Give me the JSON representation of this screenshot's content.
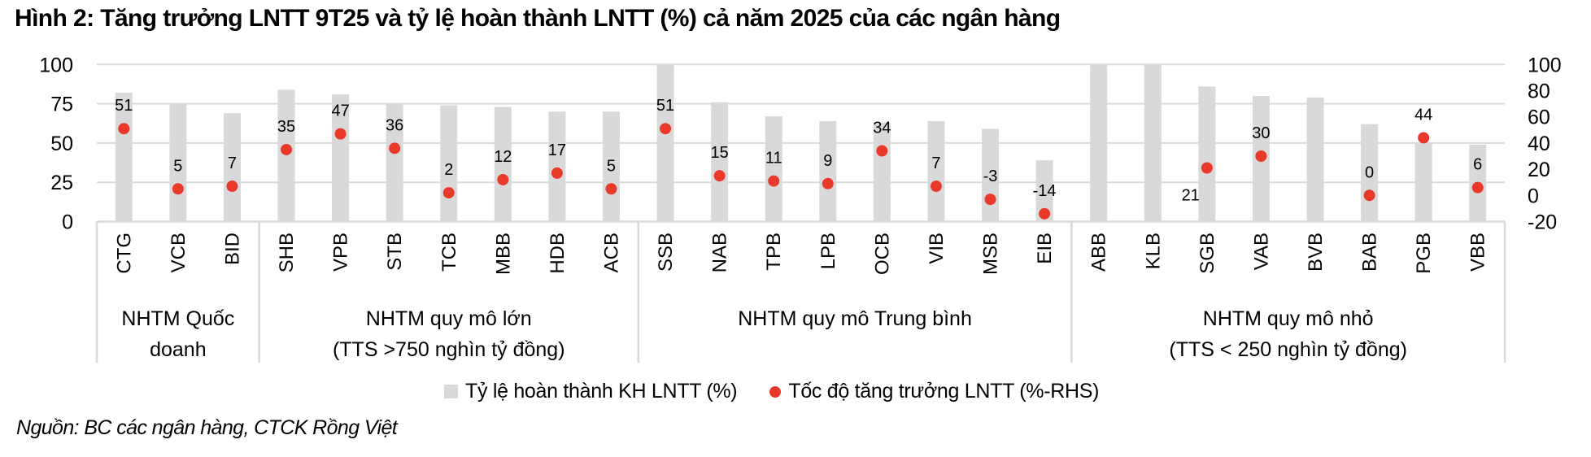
{
  "title": "Hình 2: Tăng trưởng LNTT 9T25 và tỷ lệ hoàn thành LNTT (%) cả năm 2025 của các ngân hàng",
  "legend": {
    "bar_label": "Tỷ lệ hoàn thành KH LNTT (%)",
    "dot_label": "Tốc độ tăng trưởng LNTT (%-RHS)"
  },
  "source": "Nguồn: BC các ngân hàng, CTCK Rồng Việt",
  "colors": {
    "bar": "#d9d9d9",
    "dot": "#e8392b",
    "grid": "#d9d9d9",
    "text": "#000000"
  },
  "chart_data": {
    "type": "bar",
    "title": "Hình 2: Tăng trưởng LNTT 9T25 và tỷ lệ hoàn thành LNTT (%) cả năm 2025 của các ngân hàng",
    "xlabel": "",
    "ylabel": "",
    "categories": [
      "CTG",
      "VCB",
      "BID",
      "SHB",
      "VPB",
      "STB",
      "TCB",
      "MBB",
      "HDB",
      "ACB",
      "SSB",
      "NAB",
      "TPB",
      "LPB",
      "OCB",
      "VIB",
      "MSB",
      "EIB",
      "ABB",
      "KLB",
      "SGB",
      "VAB",
      "BVB",
      "BAB",
      "PGB",
      "VBB"
    ],
    "groups": [
      {
        "label_lines": [
          "NHTM Quốc",
          "doanh"
        ],
        "start": 0,
        "end": 3
      },
      {
        "label_lines": [
          "NHTM quy mô lớn",
          "(TTS >750 nghìn tỷ đồng)"
        ],
        "start": 3,
        "end": 10
      },
      {
        "label_lines": [
          "NHTM quy mô Trung bình"
        ],
        "start": 10,
        "end": 18
      },
      {
        "label_lines": [
          "NHTM quy mô nhỏ",
          "(TTS < 250 nghìn tỷ đồng)"
        ],
        "start": 18,
        "end": 26
      }
    ],
    "series": [
      {
        "name": "Tỷ lệ hoàn thành KH LNTT (%)",
        "type": "bar",
        "axis": "left",
        "values": [
          82,
          75,
          69,
          84,
          81,
          75,
          74,
          73,
          70,
          70,
          100,
          76,
          67,
          64,
          63,
          64,
          59,
          39,
          100,
          100,
          86,
          80,
          79,
          62,
          50,
          49
        ]
      },
      {
        "name": "Tốc độ tăng trưởng LNTT (%-RHS)",
        "type": "scatter",
        "axis": "right",
        "values": [
          51,
          5,
          7,
          35,
          47,
          36,
          2,
          12,
          17,
          5,
          51,
          15,
          11,
          9,
          34,
          7,
          -3,
          -14,
          null,
          null,
          21,
          30,
          null,
          0,
          44,
          6
        ],
        "data_labels": [
          "51",
          "5",
          "7",
          "35",
          "47",
          "36",
          "2",
          "12",
          "17",
          "5",
          "51",
          "15",
          "11",
          "9",
          "34",
          "7",
          "-3",
          "-14",
          "",
          "",
          "21",
          "30",
          "",
          "0",
          "44",
          "6"
        ]
      }
    ],
    "y_left": {
      "ylim": [
        0,
        100
      ],
      "ticks": [
        0,
        25,
        50,
        75,
        100
      ]
    },
    "y_right": {
      "ylim": [
        -20,
        100
      ],
      "ticks": [
        -20,
        0,
        20,
        40,
        60,
        80,
        100
      ]
    },
    "grid": true,
    "legend_position": "bottom"
  }
}
